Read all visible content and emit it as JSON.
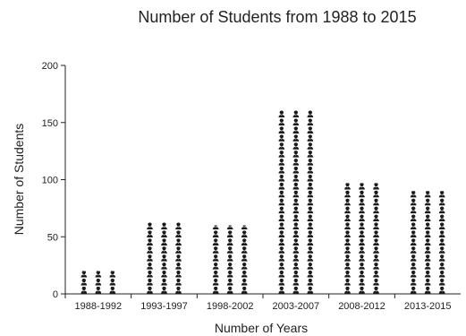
{
  "chart_data": {
    "type": "bar",
    "style": "pictograph",
    "title": "Number of Students from 1988 to 2015",
    "xlabel": "Number of Years",
    "ylabel": "Number of Students",
    "categories": [
      "1988-1992",
      "1993-1997",
      "1998-2002",
      "2003-2007",
      "2008-2012",
      "2013-2015"
    ],
    "values": [
      20,
      63,
      60,
      161,
      97,
      90
    ],
    "ylim": [
      0,
      200
    ],
    "yticks": [
      0,
      50,
      100,
      150,
      200
    ],
    "grid": false,
    "legend": "none",
    "icon": "student-icon",
    "icons_per_row": 3,
    "students_per_icon_row": 7,
    "colors": {
      "icon": "#1a1a1a",
      "axis": "#222222",
      "background": "#ffffff"
    }
  }
}
